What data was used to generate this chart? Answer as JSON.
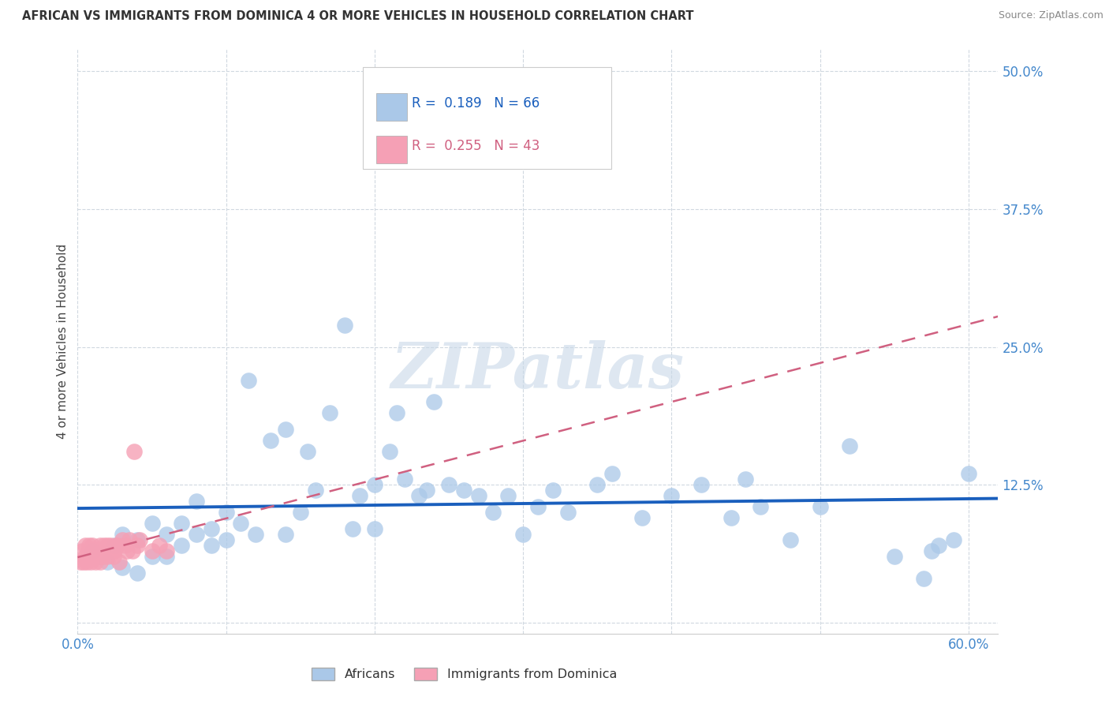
{
  "title": "AFRICAN VS IMMIGRANTS FROM DOMINICA 4 OR MORE VEHICLES IN HOUSEHOLD CORRELATION CHART",
  "source": "Source: ZipAtlas.com",
  "ylabel": "4 or more Vehicles in Household",
  "xlim": [
    0.0,
    0.62
  ],
  "ylim": [
    -0.01,
    0.52
  ],
  "xticks": [
    0.0,
    0.1,
    0.2,
    0.3,
    0.4,
    0.5,
    0.6
  ],
  "yticks": [
    0.0,
    0.125,
    0.25,
    0.375,
    0.5
  ],
  "africans_R": 0.189,
  "africans_N": 66,
  "dominica_R": 0.255,
  "dominica_N": 43,
  "legend_label_1": "Africans",
  "legend_label_2": "Immigrants from Dominica",
  "scatter_color_africans": "#aac8e8",
  "scatter_color_dominica": "#f5a0b5",
  "line_color_africans": "#1a5fbd",
  "line_color_dominica": "#d06080",
  "africans_x": [
    0.01,
    0.02,
    0.025,
    0.03,
    0.03,
    0.04,
    0.04,
    0.05,
    0.05,
    0.06,
    0.06,
    0.07,
    0.07,
    0.08,
    0.08,
    0.09,
    0.09,
    0.1,
    0.1,
    0.11,
    0.115,
    0.12,
    0.13,
    0.14,
    0.14,
    0.15,
    0.155,
    0.16,
    0.17,
    0.18,
    0.185,
    0.19,
    0.2,
    0.2,
    0.21,
    0.215,
    0.22,
    0.23,
    0.235,
    0.24,
    0.25,
    0.26,
    0.27,
    0.28,
    0.29,
    0.3,
    0.31,
    0.32,
    0.33,
    0.35,
    0.36,
    0.38,
    0.4,
    0.42,
    0.44,
    0.45,
    0.46,
    0.48,
    0.5,
    0.52,
    0.55,
    0.57,
    0.575,
    0.58,
    0.59,
    0.6
  ],
  "africans_y": [
    0.065,
    0.055,
    0.07,
    0.05,
    0.08,
    0.075,
    0.045,
    0.06,
    0.09,
    0.08,
    0.06,
    0.09,
    0.07,
    0.08,
    0.11,
    0.07,
    0.085,
    0.075,
    0.1,
    0.09,
    0.22,
    0.08,
    0.165,
    0.175,
    0.08,
    0.1,
    0.155,
    0.12,
    0.19,
    0.27,
    0.085,
    0.115,
    0.085,
    0.125,
    0.155,
    0.19,
    0.13,
    0.115,
    0.12,
    0.2,
    0.125,
    0.12,
    0.115,
    0.1,
    0.115,
    0.08,
    0.105,
    0.12,
    0.1,
    0.125,
    0.135,
    0.095,
    0.115,
    0.125,
    0.095,
    0.13,
    0.105,
    0.075,
    0.105,
    0.16,
    0.06,
    0.04,
    0.065,
    0.07,
    0.075,
    0.135
  ],
  "dominica_x": [
    0.002,
    0.003,
    0.004,
    0.005,
    0.005,
    0.006,
    0.007,
    0.008,
    0.008,
    0.009,
    0.01,
    0.01,
    0.011,
    0.012,
    0.013,
    0.014,
    0.015,
    0.015,
    0.016,
    0.017,
    0.018,
    0.019,
    0.02,
    0.02,
    0.021,
    0.022,
    0.023,
    0.024,
    0.025,
    0.026,
    0.027,
    0.028,
    0.03,
    0.032,
    0.033,
    0.035,
    0.037,
    0.038,
    0.04,
    0.042,
    0.05,
    0.055,
    0.06
  ],
  "dominica_y": [
    0.055,
    0.065,
    0.055,
    0.06,
    0.07,
    0.055,
    0.065,
    0.06,
    0.07,
    0.055,
    0.065,
    0.07,
    0.06,
    0.055,
    0.065,
    0.06,
    0.07,
    0.055,
    0.065,
    0.06,
    0.07,
    0.065,
    0.07,
    0.06,
    0.065,
    0.07,
    0.065,
    0.06,
    0.065,
    0.07,
    0.07,
    0.055,
    0.075,
    0.07,
    0.065,
    0.075,
    0.065,
    0.155,
    0.07,
    0.075,
    0.065,
    0.07,
    0.065
  ],
  "watermark": "ZIPatlas",
  "background_color": "#ffffff",
  "grid_color": "#d0d8e0"
}
